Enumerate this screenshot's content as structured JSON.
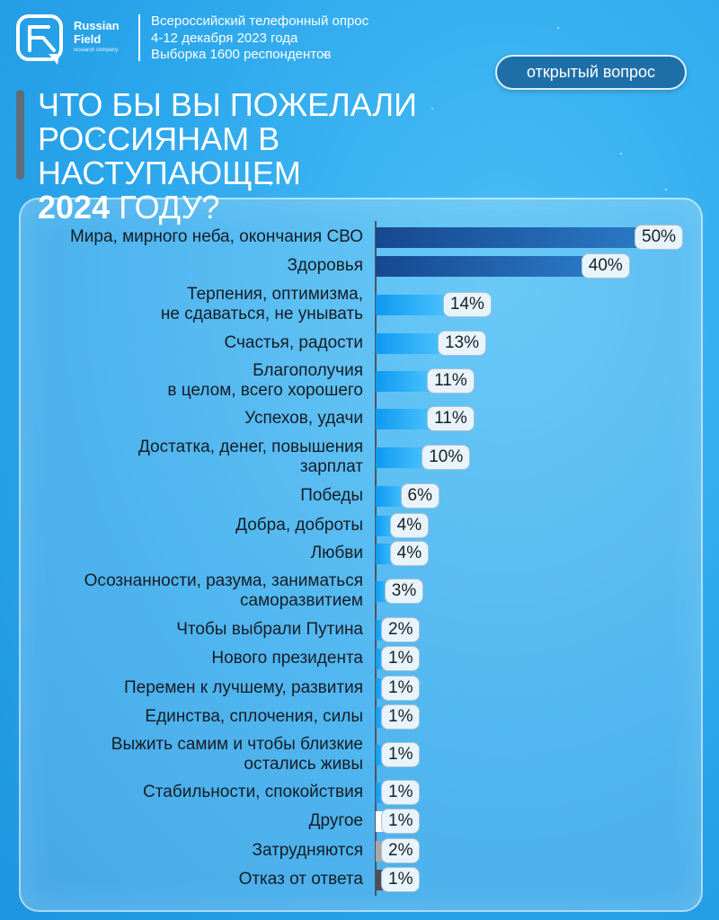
{
  "header": {
    "brand": {
      "line1": "Russian",
      "line2": "Field",
      "line3": "research company"
    },
    "survey_lines": [
      "Всероссийский телефонный опрос",
      "4-12 декабря 2023 года",
      "Выборка 1600 респондентов"
    ],
    "badge": "открытый вопрос",
    "title_lines": [
      "Что бы вы пожелали",
      "россиянам в наступающем"
    ],
    "title_year": "2024",
    "title_end": " году?"
  },
  "colors": {
    "top_bar": "#1d5ea6",
    "main_bar": "#1aa6f2",
    "other": "#ffffff",
    "undecided": "#a8a8a8",
    "refusal": "#4d4f55"
  },
  "chart_data": {
    "type": "bar",
    "orientation": "horizontal",
    "unit": "%",
    "categories": [
      "Мира, мирного неба, окончания СВО",
      "Здоровья",
      "Терпения, оптимизма,\nне сдаваться, не унывать",
      "Счастья, радости",
      "Благополучия\nв целом, всего хорошего",
      "Успехов, удачи",
      "Достатка, денег, повышения\nзарплат",
      "Победы",
      "Добра, доброты",
      "Любви",
      "Осознанности, разума, заниматься\nсаморазвитием",
      "Чтобы выбрали Путина",
      "Нового президента",
      "Перемен к лучшему, развития",
      "Единства, сплочения, силы",
      "Выжить самим и чтобы близкие\nостались живы",
      "Стабильности, спокойствия",
      "Другое",
      "Затрудняются",
      "Отказ от ответа"
    ],
    "values": [
      50,
      40,
      14,
      13,
      11,
      11,
      10,
      6,
      4,
      4,
      3,
      2,
      1,
      1,
      1,
      1,
      1,
      1,
      2,
      1
    ],
    "labels": [
      "50%",
      "40%",
      "14%",
      "13%",
      "11%",
      "11%",
      "10%",
      "6%",
      "4%",
      "4%",
      "3%",
      "2%",
      "1%",
      "1%",
      "1%",
      "1%",
      "1%",
      "1%",
      "2%",
      "1%"
    ],
    "styles": [
      "top",
      "top",
      "main",
      "main",
      "main",
      "main",
      "main",
      "main",
      "main",
      "main",
      "main",
      "main",
      "main",
      "main",
      "main",
      "main",
      "main",
      "other",
      "undecided",
      "refusal"
    ],
    "xlim": [
      0,
      50
    ]
  }
}
